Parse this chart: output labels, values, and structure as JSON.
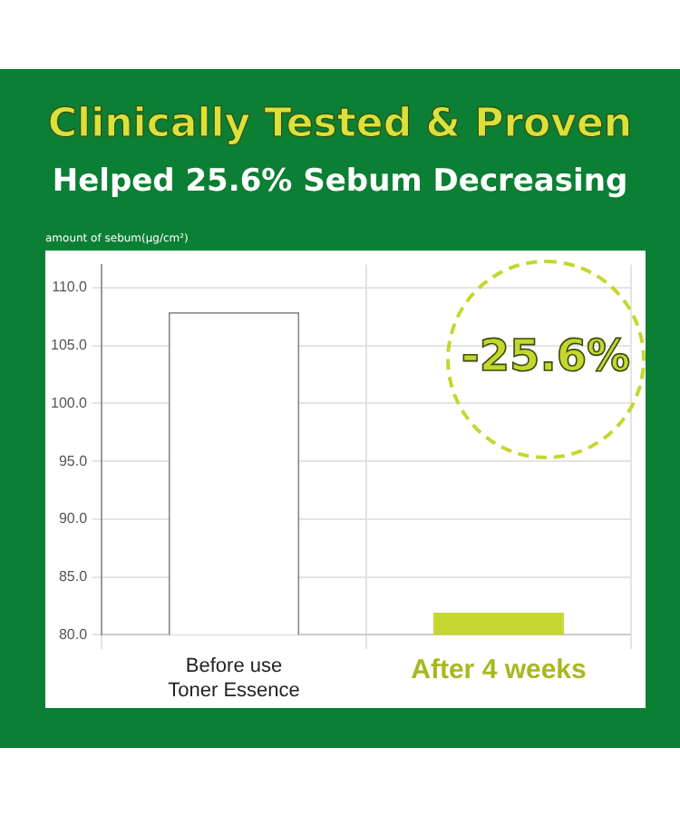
{
  "chart_data": {
    "type": "bar",
    "title": "Clinically Tested & Proven",
    "subtitle": "Helped 25.6% Sebum Decreasing",
    "ylabel": "amount of sebum(μg/cm²)",
    "categories": [
      "Before use\nToner Essence",
      "After 4 weeks"
    ],
    "values": [
      107.9,
      81.9
    ],
    "colors": [
      "#ffffff",
      "#c5d62e"
    ],
    "ylim": [
      80,
      112
    ],
    "yticks": [
      {
        "value": 80,
        "label": "80.0"
      },
      {
        "value": 85,
        "label": "85.0"
      },
      {
        "value": 90,
        "label": "90.0"
      },
      {
        "value": 95,
        "label": "95.0"
      },
      {
        "value": 100,
        "label": "100.0"
      },
      {
        "value": 105,
        "label": "105.0"
      },
      {
        "value": 110,
        "label": "110.0"
      }
    ],
    "grid": true,
    "annotations": [
      "-25.6%"
    ]
  }
}
